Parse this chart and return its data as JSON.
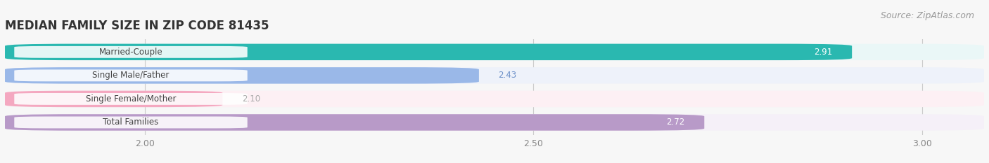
{
  "title": "MEDIAN FAMILY SIZE IN ZIP CODE 81435",
  "source": "Source: ZipAtlas.com",
  "categories": [
    "Married-Couple",
    "Single Male/Father",
    "Single Female/Mother",
    "Total Families"
  ],
  "values": [
    2.91,
    2.43,
    2.1,
    2.72
  ],
  "bar_colors": [
    "#2ab8b0",
    "#9ab8e8",
    "#f4a8c0",
    "#b89ac8"
  ],
  "bar_bg_colors": [
    "#eaf7f7",
    "#eef2fa",
    "#fdf0f4",
    "#f5f0f8"
  ],
  "value_inside": [
    true,
    false,
    false,
    true
  ],
  "value_colors_inside": [
    "#ffffff",
    "#6a8fc8",
    "#aaaaaa",
    "#ffffff"
  ],
  "xlim_min": 1.82,
  "xlim_max": 3.08,
  "xticks": [
    2.0,
    2.5,
    3.0
  ],
  "title_fontsize": 12,
  "source_fontsize": 9,
  "bar_label_fontsize": 8.5,
  "value_fontsize": 8.5,
  "background_color": "#f7f7f7",
  "bar_area_bg": "#f0f0f0"
}
